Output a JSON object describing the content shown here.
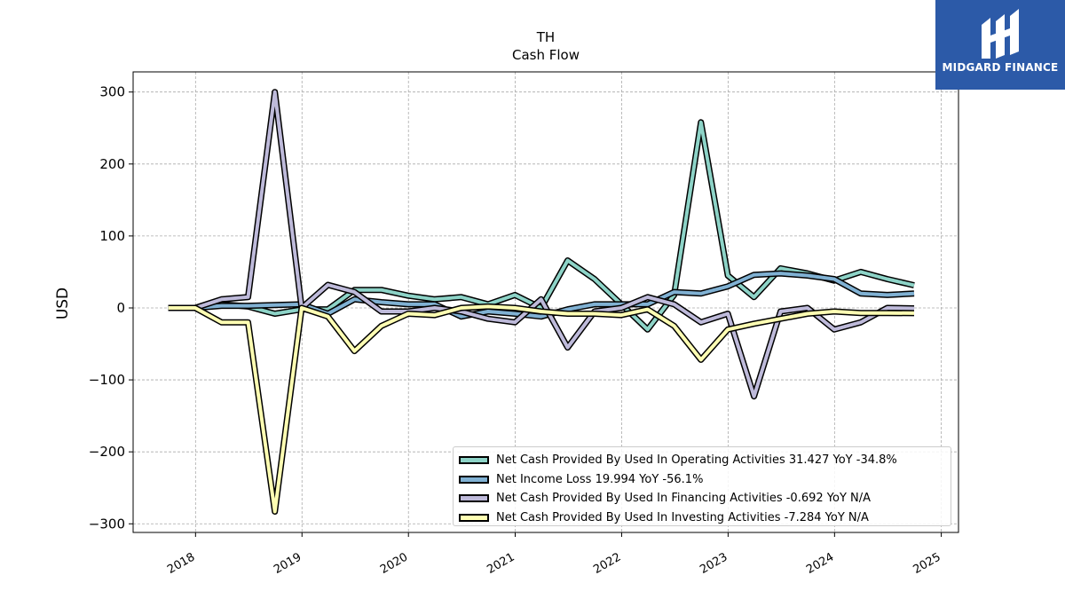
{
  "brand": {
    "name": "MIDGARD FINANCE",
    "color": "#2c5aa8"
  },
  "chart_data": {
    "type": "line",
    "title": "TH",
    "subtitle": "Cash Flow",
    "xlabel": "",
    "ylabel": "USD",
    "ylim": [
      -312,
      328
    ],
    "xlim": [
      "2017-06-01",
      "2025-03-01"
    ],
    "grid": true,
    "legend_position": "bottom-right",
    "x_tick_labels": [
      "2018",
      "2019",
      "2020",
      "2021",
      "2022",
      "2023",
      "2024",
      "2025"
    ],
    "y_tick_labels": [
      "300",
      "200",
      "100",
      "0",
      "−100",
      "−200",
      "−300"
    ],
    "y_tick_values": [
      300,
      200,
      100,
      0,
      -100,
      -200,
      -300
    ],
    "x": [
      "2017-09-30",
      "2017-12-31",
      "2018-03-31",
      "2018-06-30",
      "2018-09-30",
      "2018-12-31",
      "2019-03-31",
      "2019-06-30",
      "2019-09-30",
      "2019-12-31",
      "2020-03-31",
      "2020-06-30",
      "2020-09-30",
      "2020-12-31",
      "2021-03-31",
      "2021-06-30",
      "2021-09-30",
      "2021-12-31",
      "2022-03-31",
      "2022-06-30",
      "2022-09-30",
      "2022-12-31",
      "2023-03-31",
      "2023-06-30",
      "2023-09-30",
      "2023-12-31",
      "2024-03-31",
      "2024-06-30",
      "2024-09-30"
    ],
    "series": [
      {
        "name": "Net Cash Provided By Used In Operating Activities  31.427 YoY -34.8%",
        "color": "#8dd3c7",
        "values": [
          0,
          0,
          5,
          2,
          -8,
          -2,
          -2,
          25,
          25,
          17,
          12,
          15,
          5,
          18,
          0,
          66,
          40,
          5,
          -30,
          18,
          258,
          45,
          15,
          55,
          48,
          38,
          50,
          40,
          31.427
        ]
      },
      {
        "name": "Net Income Loss  19.994 YoY -56.1%",
        "color": "#80b1d3",
        "values": [
          0,
          0,
          3,
          3,
          4,
          5,
          -8,
          12,
          8,
          5,
          5,
          -12,
          -5,
          -8,
          -12,
          -2,
          5,
          5,
          5,
          22,
          20,
          30,
          46,
          48,
          45,
          40,
          20,
          18,
          19.994
        ]
      },
      {
        "name": "Net Cash Provided By Used In Financing Activities  -0.692 YoY N/A",
        "color": "#bebada",
        "values": [
          0,
          0,
          12,
          15,
          300,
          0,
          32,
          22,
          -5,
          -5,
          0,
          -5,
          -15,
          -20,
          12,
          -55,
          -5,
          0,
          15,
          5,
          -20,
          -8,
          -123,
          -5,
          0,
          -30,
          -20,
          0,
          -0.692
        ]
      },
      {
        "name": "Net Cash Provided By Used In Investing Activities  -7.284 YoY N/A",
        "color": "#ffffb3",
        "values": [
          0,
          0,
          -20,
          -20,
          -283,
          0,
          -12,
          -60,
          -25,
          -8,
          -10,
          0,
          2,
          0,
          -5,
          -8,
          -8,
          -10,
          -2,
          -25,
          -72,
          -30,
          -22,
          -15,
          -8,
          -5,
          -7,
          -7,
          -7.284
        ]
      }
    ]
  }
}
